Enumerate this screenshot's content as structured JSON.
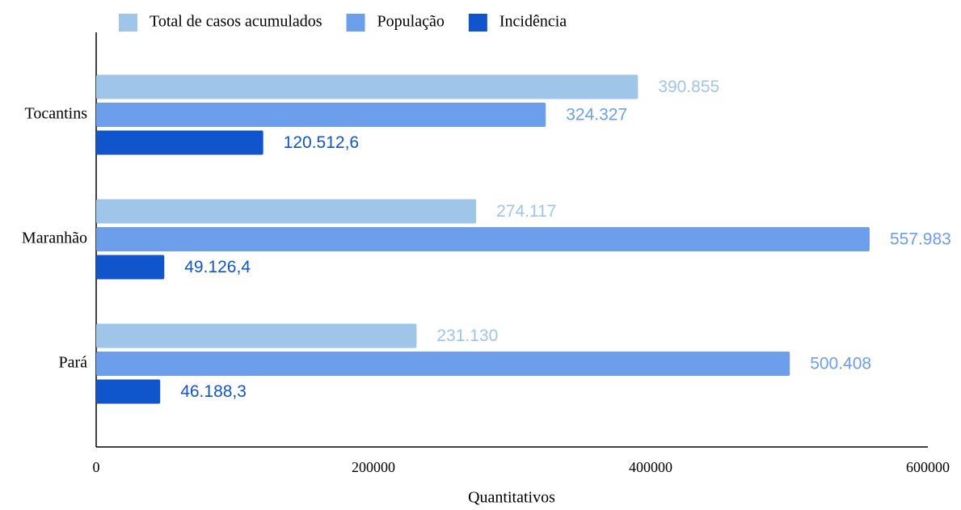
{
  "chart_data": {
    "type": "hbar",
    "categories": [
      "Tocantins",
      "Maranhão",
      "Pará"
    ],
    "series": [
      {
        "name": "Total de casos acumulados",
        "color": "#9fc5e8",
        "values": [
          390855,
          274117,
          231130
        ],
        "value_labels": [
          "390.855",
          "274.117",
          "231.130"
        ]
      },
      {
        "name": "População",
        "color": "#6d9eeb",
        "values": [
          324327,
          557983,
          500408
        ],
        "value_labels": [
          "324.327",
          "557.983",
          "500.408"
        ]
      },
      {
        "name": "Incidência",
        "color": "#1155cc",
        "values": [
          120512.6,
          49126.4,
          46188.3
        ],
        "value_labels": [
          "120.512,6",
          "49.126,4",
          "46.188,3"
        ]
      }
    ],
    "xlabel": "Quantitativos",
    "xlim": [
      0,
      600000
    ],
    "xticks": [
      0,
      200000,
      400000,
      600000
    ],
    "grid": false,
    "legend": "top"
  }
}
